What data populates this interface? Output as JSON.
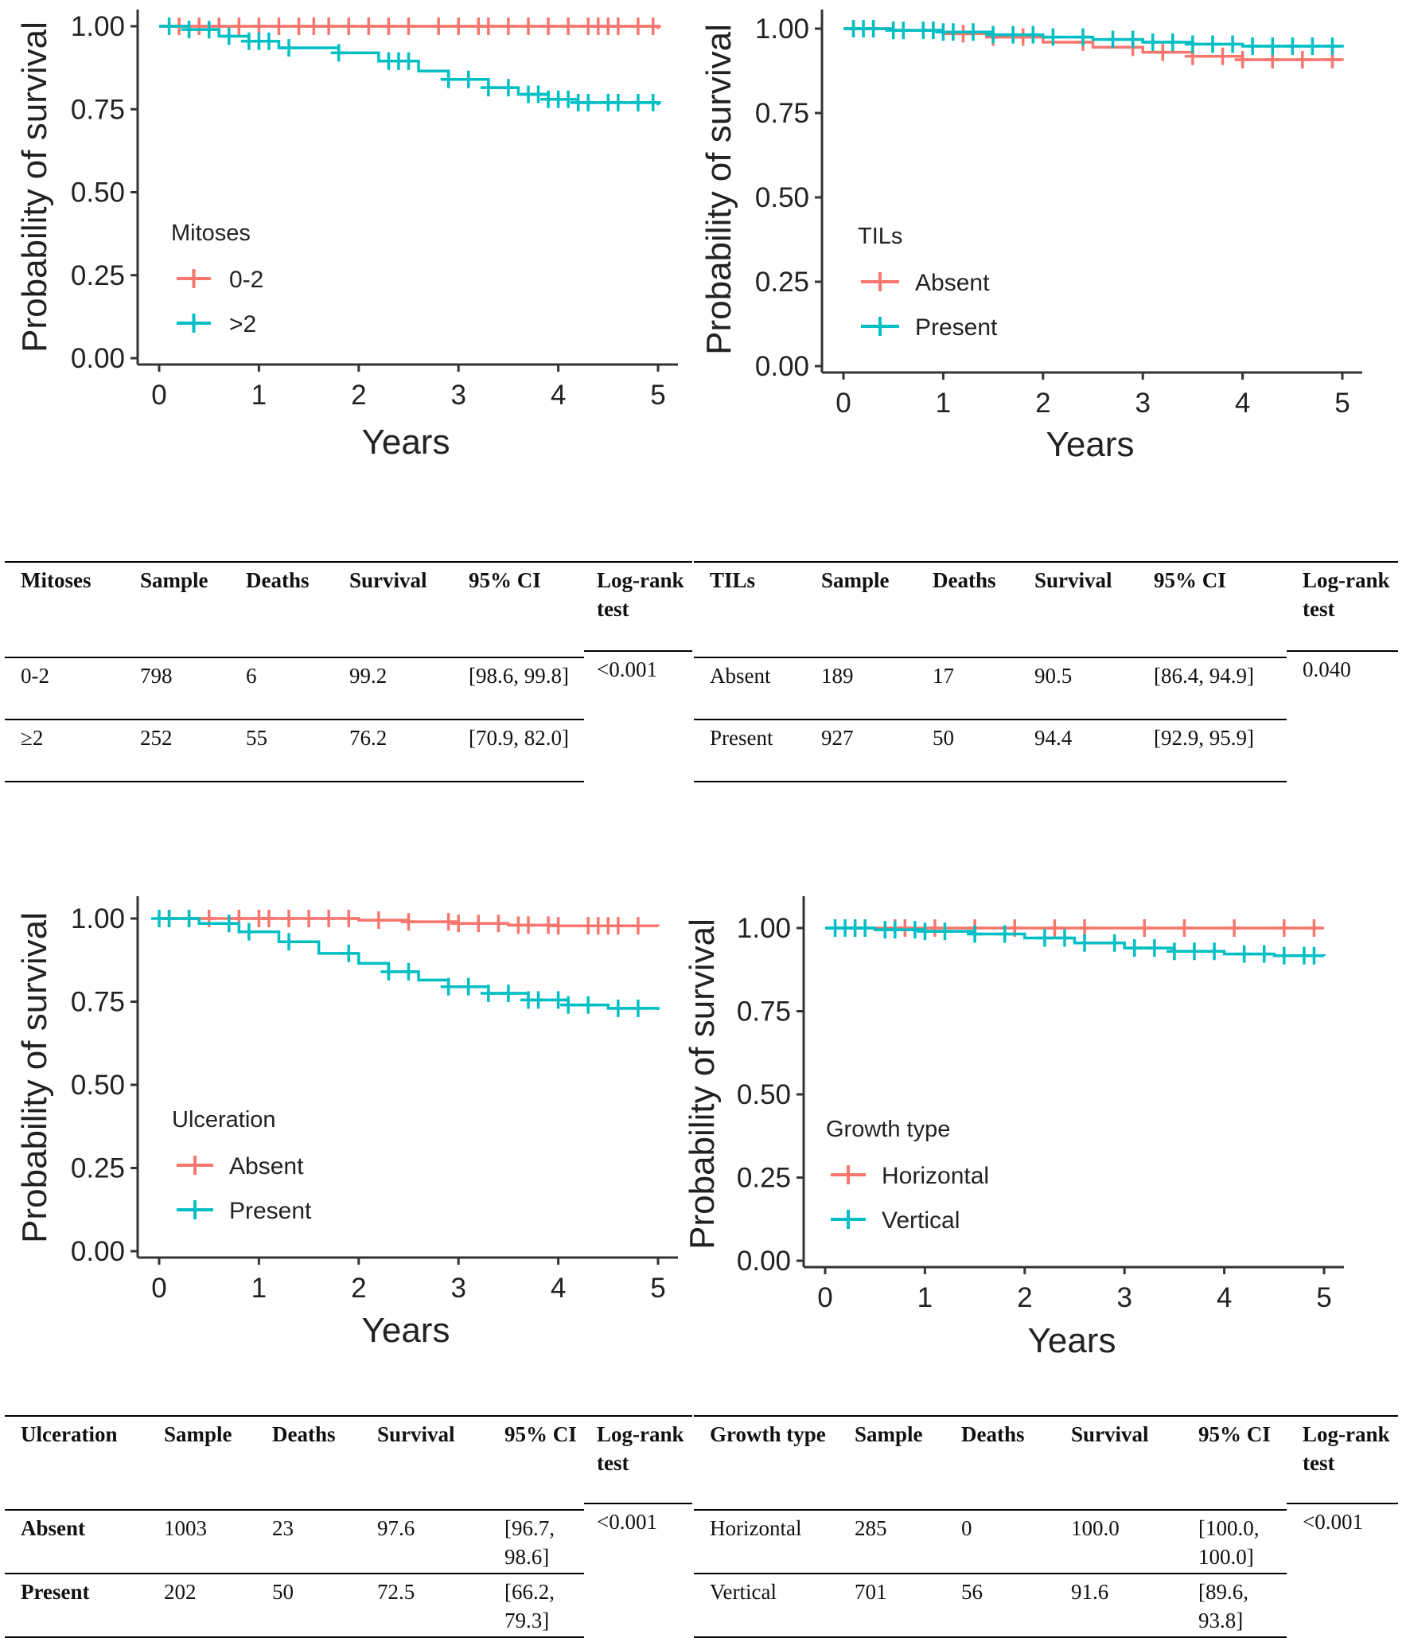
{
  "colors": {
    "red": "#F8766D",
    "cyan": "#00BFC4",
    "axis": "#333333"
  },
  "charts": [
    {
      "id": "km-mitoses",
      "chart_data": {
        "type": "line",
        "title": "",
        "xlabel": "Years",
        "ylabel": "Probability of survival",
        "xlim": [
          0,
          5
        ],
        "ylim": [
          0,
          1
        ],
        "xticks": [
          "0",
          "1",
          "2",
          "3",
          "4",
          "5"
        ],
        "yticks": [
          "0.00",
          "0.25",
          "0.50",
          "0.75",
          "1.00"
        ],
        "legend_title": "Mitoses",
        "series": [
          {
            "name": "0-2",
            "color": "#F8766D",
            "x": [
              0,
              5
            ],
            "y": [
              1.0,
              0.992
            ],
            "censor": [
              0.2,
              0.4,
              0.6,
              0.8,
              1.0,
              1.2,
              1.4,
              1.55,
              1.7,
              1.9,
              2.1,
              2.3,
              2.5,
              2.8,
              3.0,
              3.2,
              3.3,
              3.5,
              3.7,
              3.9,
              4.1,
              4.3,
              4.4,
              4.5,
              4.6,
              4.8,
              4.95
            ]
          },
          {
            "name": ">2",
            "color": "#00BFC4",
            "x": [
              0,
              0.3,
              0.6,
              0.9,
              1.2,
              1.8,
              2.2,
              2.6,
              2.9,
              3.3,
              3.6,
              3.9,
              4.2,
              5
            ],
            "y": [
              1.0,
              0.99,
              0.97,
              0.955,
              0.935,
              0.92,
              0.895,
              0.865,
              0.84,
              0.815,
              0.795,
              0.78,
              0.77,
              0.762
            ],
            "censor": [
              0.1,
              0.3,
              0.5,
              0.7,
              0.9,
              1.0,
              1.1,
              1.3,
              1.8,
              2.3,
              2.4,
              2.5,
              2.9,
              3.1,
              3.3,
              3.5,
              3.7,
              3.8,
              3.9,
              4.0,
              4.1,
              4.2,
              4.3,
              4.5,
              4.6,
              4.8,
              4.95
            ]
          }
        ]
      }
    },
    {
      "id": "km-tils",
      "chart_data": {
        "type": "line",
        "title": "",
        "xlabel": "Years",
        "ylabel": "Probability of survival",
        "xlim": [
          0,
          5
        ],
        "ylim": [
          0,
          1
        ],
        "xticks": [
          "0",
          "1",
          "2",
          "3",
          "4",
          "5"
        ],
        "yticks": [
          "0.00",
          "0.25",
          "0.50",
          "0.75",
          "1.00"
        ],
        "legend_title": "TILs",
        "series": [
          {
            "name": "Absent",
            "color": "#F8766D",
            "x": [
              0,
              0.5,
              1.0,
              1.5,
              2.0,
              2.5,
              3.0,
              3.5,
              4.0,
              5
            ],
            "y": [
              1.0,
              0.995,
              0.985,
              0.975,
              0.96,
              0.945,
              0.93,
              0.918,
              0.908,
              0.905
            ],
            "censor": [
              0.1,
              0.3,
              0.6,
              0.9,
              1.2,
              1.5,
              1.8,
              2.4,
              2.9,
              3.2,
              3.5,
              3.8,
              4.0,
              4.3,
              4.6,
              4.9
            ]
          },
          {
            "name": "Present",
            "color": "#00BFC4",
            "x": [
              0,
              0.5,
              1.0,
              1.5,
              2.0,
              2.5,
              3.0,
              3.5,
              4.0,
              5
            ],
            "y": [
              1.0,
              0.995,
              0.99,
              0.982,
              0.975,
              0.968,
              0.96,
              0.954,
              0.948,
              0.944
            ],
            "censor": [
              0.1,
              0.2,
              0.3,
              0.5,
              0.6,
              0.8,
              0.9,
              1.0,
              1.1,
              1.3,
              1.5,
              1.7,
              1.9,
              2.1,
              2.4,
              2.7,
              2.9,
              3.1,
              3.3,
              3.5,
              3.7,
              3.9,
              4.1,
              4.3,
              4.5,
              4.7,
              4.9
            ]
          }
        ]
      }
    },
    {
      "id": "km-ulceration",
      "chart_data": {
        "type": "line",
        "title": "",
        "xlabel": "Years",
        "ylabel": "Probability of survival",
        "xlim": [
          0,
          5
        ],
        "ylim": [
          0,
          1
        ],
        "xticks": [
          "0",
          "1",
          "2",
          "3",
          "4",
          "5"
        ],
        "yticks": [
          "0.00",
          "0.25",
          "0.50",
          "0.75",
          "1.00"
        ],
        "legend_title": "Ulceration",
        "series": [
          {
            "name": "Absent",
            "color": "#F8766D",
            "x": [
              0,
              1.0,
              2.0,
              2.5,
              3.0,
              3.5,
              4.0,
              5
            ],
            "y": [
              1.0,
              1.0,
              0.995,
              0.99,
              0.985,
              0.98,
              0.978,
              0.976
            ],
            "censor": [
              0.1,
              0.3,
              0.5,
              0.8,
              1.0,
              1.1,
              1.3,
              1.5,
              1.7,
              1.9,
              2.2,
              2.5,
              2.9,
              3.0,
              3.2,
              3.4,
              3.6,
              3.7,
              3.9,
              4.0,
              4.3,
              4.4,
              4.5,
              4.6,
              4.8
            ]
          },
          {
            "name": "Present",
            "color": "#00BFC4",
            "x": [
              0,
              0.4,
              0.8,
              1.2,
              1.6,
              2.0,
              2.3,
              2.6,
              2.9,
              3.3,
              3.7,
              4.1,
              4.5,
              5
            ],
            "y": [
              1.0,
              0.985,
              0.96,
              0.93,
              0.895,
              0.865,
              0.84,
              0.815,
              0.795,
              0.775,
              0.755,
              0.74,
              0.73,
              0.725
            ],
            "censor": [
              0.0,
              0.1,
              0.3,
              0.7,
              0.9,
              1.3,
              1.9,
              2.3,
              2.5,
              2.9,
              3.1,
              3.3,
              3.5,
              3.7,
              3.8,
              4.0,
              4.1,
              4.3,
              4.6,
              4.8
            ]
          }
        ]
      }
    },
    {
      "id": "km-growth",
      "chart_data": {
        "type": "line",
        "title": "",
        "xlabel": "Years",
        "ylabel": "Probability of survival",
        "xlim": [
          0,
          5
        ],
        "ylim": [
          0,
          1
        ],
        "xticks": [
          "0",
          "1",
          "2",
          "3",
          "4",
          "5"
        ],
        "yticks": [
          "0.00",
          "0.25",
          "0.50",
          "0.75",
          "1.00"
        ],
        "legend_title": "Growth type",
        "series": [
          {
            "name": "Horizontal",
            "color": "#F8766D",
            "x": [
              0,
              5
            ],
            "y": [
              1.0,
              1.0
            ],
            "censor": [
              0.3,
              0.7,
              0.8,
              1.1,
              1.5,
              1.9,
              2.3,
              2.6,
              3.2,
              3.6,
              4.1,
              4.6,
              4.9
            ]
          },
          {
            "name": "Vertical",
            "color": "#00BFC4",
            "x": [
              0,
              0.5,
              1.0,
              1.5,
              2.0,
              2.5,
              3.0,
              3.5,
              4.0,
              4.5,
              5
            ],
            "y": [
              1.0,
              0.995,
              0.99,
              0.982,
              0.97,
              0.955,
              0.94,
              0.93,
              0.922,
              0.917,
              0.916
            ],
            "censor": [
              0.1,
              0.2,
              0.3,
              0.4,
              0.6,
              0.7,
              0.9,
              1.0,
              1.2,
              1.5,
              1.8,
              2.2,
              2.4,
              2.6,
              2.9,
              3.1,
              3.3,
              3.5,
              3.7,
              3.9,
              4.2,
              4.4,
              4.6,
              4.8,
              4.9
            ]
          }
        ]
      }
    }
  ],
  "tables": {
    "mitoses": {
      "headers": [
        "Mitoses",
        "Sample",
        "Deaths",
        "Survival",
        "95% CI",
        "Log-rank test"
      ],
      "rows": [
        [
          "0-2",
          "798",
          "6",
          "99.2",
          "[98.6, 99.8]",
          "<0.001"
        ],
        [
          "≥2",
          "252",
          "55",
          "76.2",
          "[70.9, 82.0]",
          ""
        ]
      ]
    },
    "tils": {
      "headers": [
        "TILs",
        "Sample",
        "Deaths",
        "Survival",
        "95% CI",
        "Log-rank test"
      ],
      "rows": [
        [
          "Absent",
          "189",
          "17",
          "90.5",
          "[86.4, 94.9]",
          "0.040"
        ],
        [
          "Present",
          "927",
          "50",
          "94.4",
          "[92.9, 95.9]",
          ""
        ]
      ]
    },
    "ulceration": {
      "headers": [
        "Ulceration",
        "Sample",
        "Deaths",
        "Survival",
        "95% CI",
        "Log-rank test"
      ],
      "rows": [
        [
          "Absent",
          "1003",
          "23",
          "97.6",
          "[96.7, 98.6]",
          "<0.001"
        ],
        [
          "Present",
          "202",
          "50",
          "72.5",
          "[66.2, 79.3]",
          ""
        ]
      ]
    },
    "growth": {
      "headers": [
        "Growth type",
        "Sample",
        "Deaths",
        "Survival",
        "95% CI",
        "Log-rank test"
      ],
      "rows": [
        [
          "Horizontal",
          "285",
          "0",
          "100.0",
          "[100.0, 100.0]",
          "<0.001"
        ],
        [
          "Vertical",
          "701",
          "56",
          "91.6",
          "[89.6, 93.8]",
          ""
        ]
      ]
    }
  }
}
